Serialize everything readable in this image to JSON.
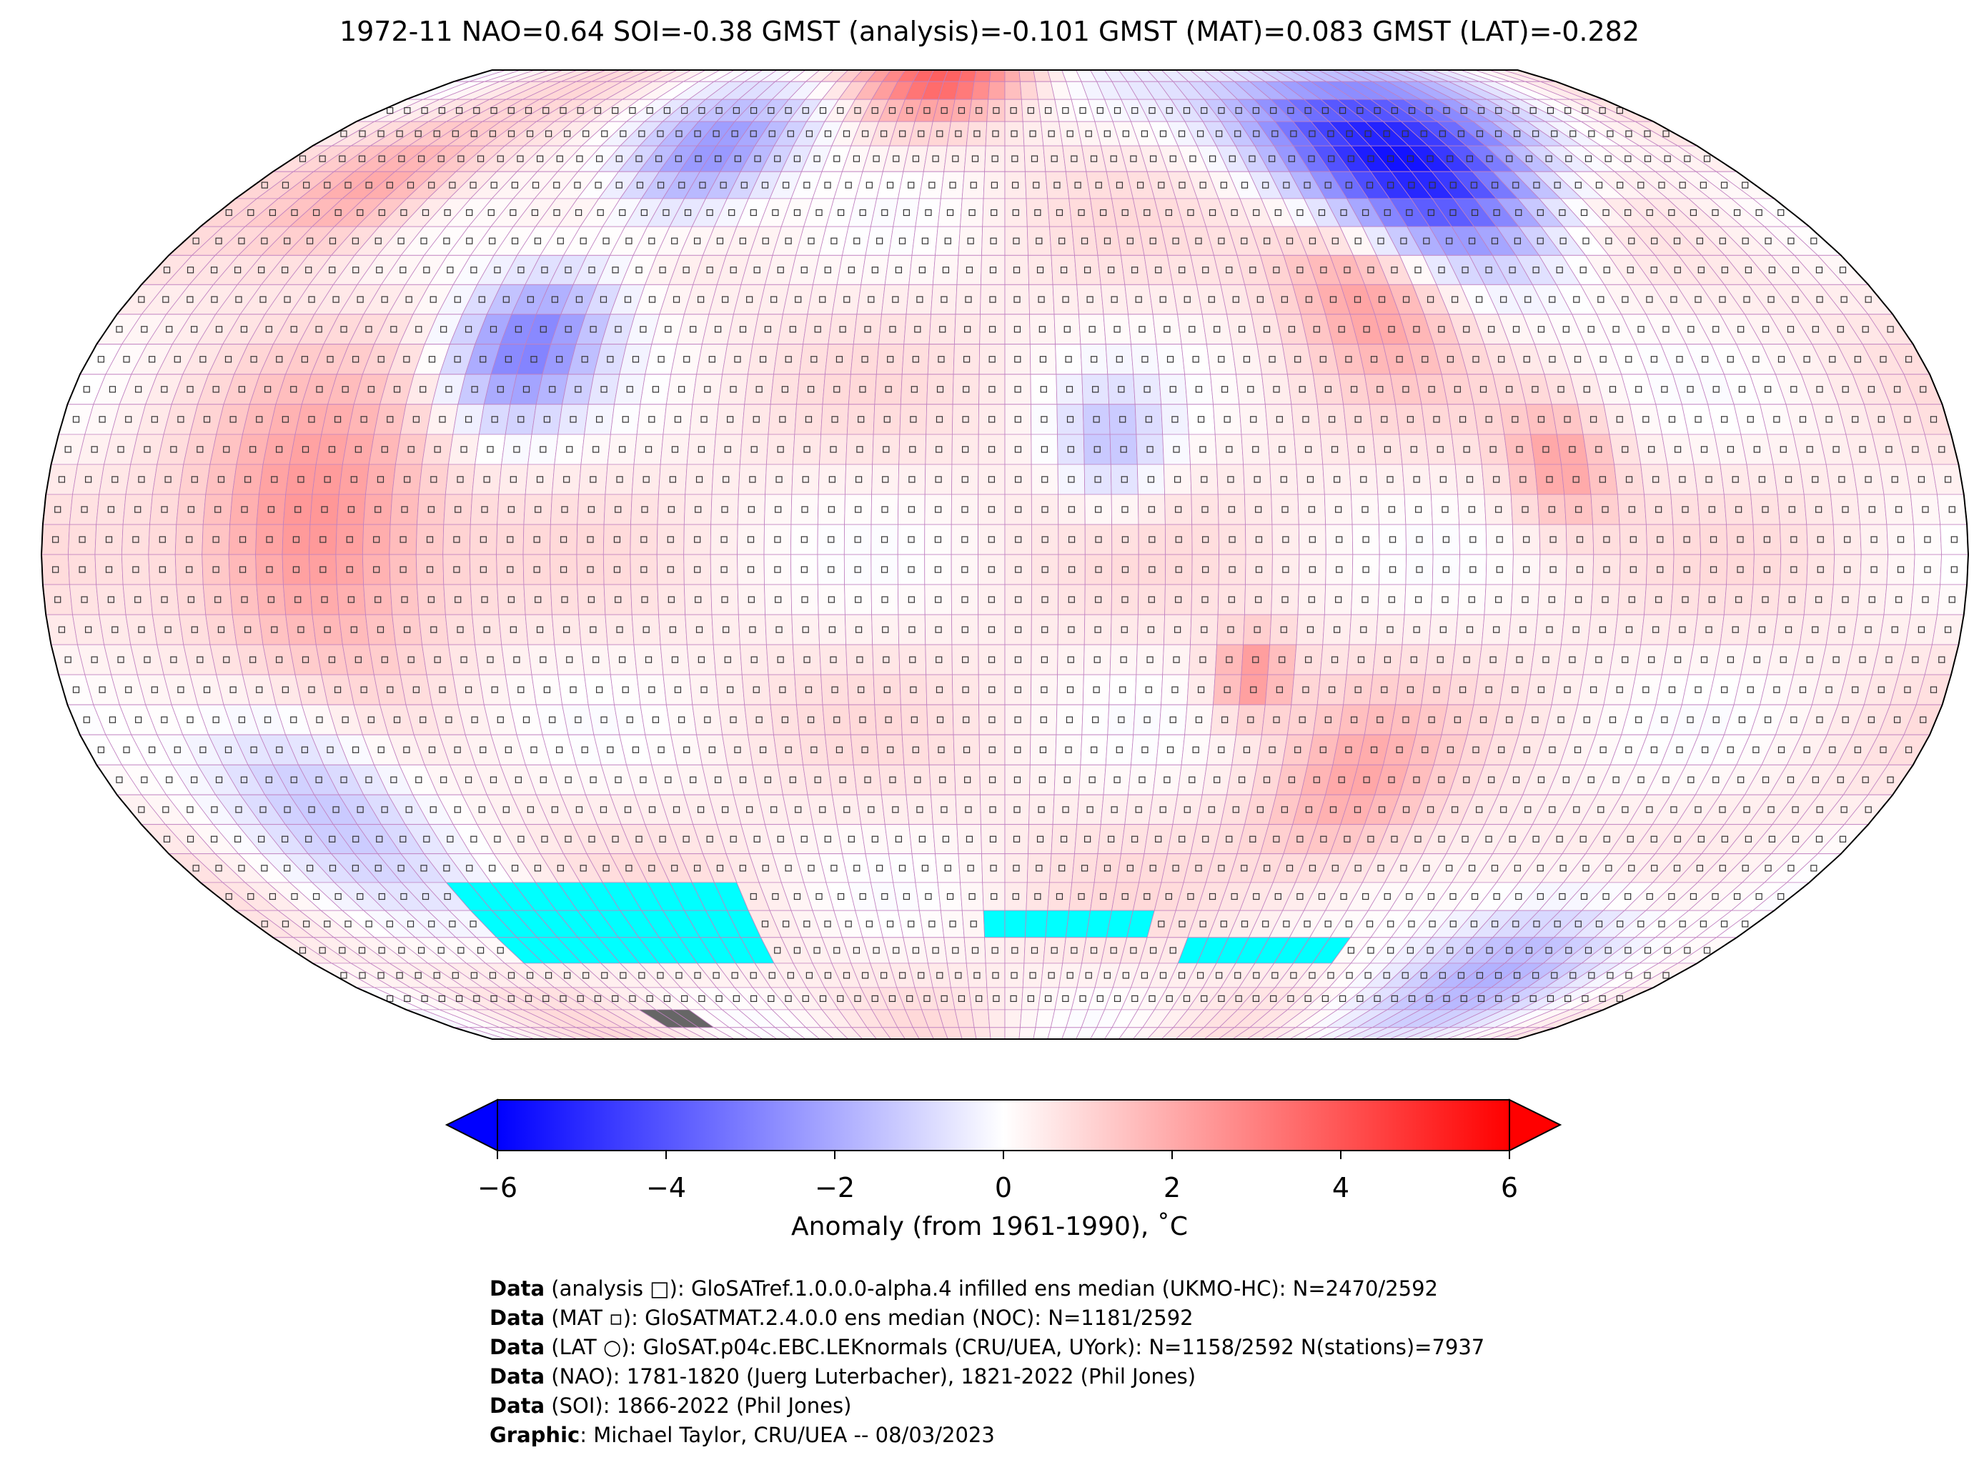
{
  "title": "1972-11 NAO=0.64 SOI=-0.38 GMST (analysis)=-0.101 GMST (MAT)=0.083 GMST (LAT)=-0.282",
  "colors": {
    "cold": "#0000ff",
    "neutral": "#ffffff",
    "warm": "#ff0000",
    "missing": "#00ffff",
    "land_mask": "#666666",
    "grid": "#c080c0"
  },
  "chart_data": {
    "type": "heatmap",
    "projection": "Robinson",
    "grid_resolution_deg": 5,
    "colorbar": {
      "ticks": [
        -6,
        -4,
        -2,
        0,
        2,
        4,
        6
      ],
      "tick_labels": [
        "−6",
        "−4",
        "−2",
        "0",
        "2",
        "4",
        "6"
      ],
      "range": [
        -6,
        6
      ],
      "extend": "both",
      "colormap": "bwr",
      "label": "Anomaly (from 1961-1990), ˚C"
    },
    "anomaly_features": [
      {
        "region": "Northern Siberia",
        "lon": 100,
        "lat": 68,
        "anomaly": -6,
        "spread": 18
      },
      {
        "region": "Central North America",
        "lon": -95,
        "lat": 35,
        "anomaly": -3.2,
        "spread": 13
      },
      {
        "region": "Canadian Arctic",
        "lon": -75,
        "lat": 68,
        "anomaly": -3,
        "spread": 12
      },
      {
        "region": "Greenland / Arctic",
        "lon": -20,
        "lat": 86,
        "anomaly": 3,
        "spread": 10
      },
      {
        "region": "Alaska",
        "lon": -150,
        "lat": 62,
        "anomaly": 1.8,
        "spread": 12
      },
      {
        "region": "Central Asia",
        "lon": 75,
        "lat": 45,
        "anomaly": 2,
        "spread": 14
      },
      {
        "region": "Tropical East Pacific",
        "lon": -130,
        "lat": 3,
        "anomaly": 2.5,
        "spread": 22
      },
      {
        "region": "Sahara",
        "lon": 20,
        "lat": 18,
        "anomaly": -1.6,
        "spread": 10
      },
      {
        "region": "Southeast Asia",
        "lon": 105,
        "lat": 15,
        "anomaly": 1.8,
        "spread": 10
      },
      {
        "region": "Madagascar",
        "lon": 47,
        "lat": -20,
        "anomaly": 2.2,
        "spread": 7
      },
      {
        "region": "South Pacific",
        "lon": -140,
        "lat": -38,
        "anomaly": -1.8,
        "spread": 18
      },
      {
        "region": "East Antarctica coast",
        "lon": 130,
        "lat": -70,
        "anomaly": -2.2,
        "spread": 15
      },
      {
        "region": "Southern Indian Ocean",
        "lon": 70,
        "lat": -40,
        "anomaly": 1.5,
        "spread": 15
      }
    ],
    "missing_cells": [
      {
        "lon_range": [
          -125,
          -60
        ],
        "lat_range": [
          -70,
          -55
        ]
      },
      {
        "lon_range": [
          -5,
          35
        ],
        "lat_range": [
          -65,
          -60
        ]
      },
      {
        "lon_range": [
          45,
          85
        ],
        "lat_range": [
          -70,
          -65
        ]
      }
    ],
    "masked_cells": [
      {
        "lon_range": [
          -110,
          -95
        ],
        "lat_range": [
          -85,
          -80
        ]
      }
    ]
  },
  "footer": [
    {
      "bold": "Data",
      "text": " (analysis □): GloSATref.1.0.0.0-alpha.4 infilled ens median (UKMO-HC): N=2470/2592"
    },
    {
      "bold": "Data",
      "text": " (MAT ▫): GloSATMAT.2.4.0.0 ens median (NOC): N=1181/2592"
    },
    {
      "bold": "Data",
      "text": " (LAT ○): GloSAT.p04c.EBC.LEKnormals (CRU/UEA, UYork): N=1158/2592 N(stations)=7937"
    },
    {
      "bold": "Data",
      "text": " (NAO): 1781-1820 (Juerg Luterbacher), 1821-2022 (Phil Jones)"
    },
    {
      "bold": "Data",
      "text": " (SOI): 1866-2022 (Phil Jones)"
    },
    {
      "bold": "Graphic",
      "text": ": Michael Taylor, CRU/UEA -- 08/03/2023"
    }
  ]
}
